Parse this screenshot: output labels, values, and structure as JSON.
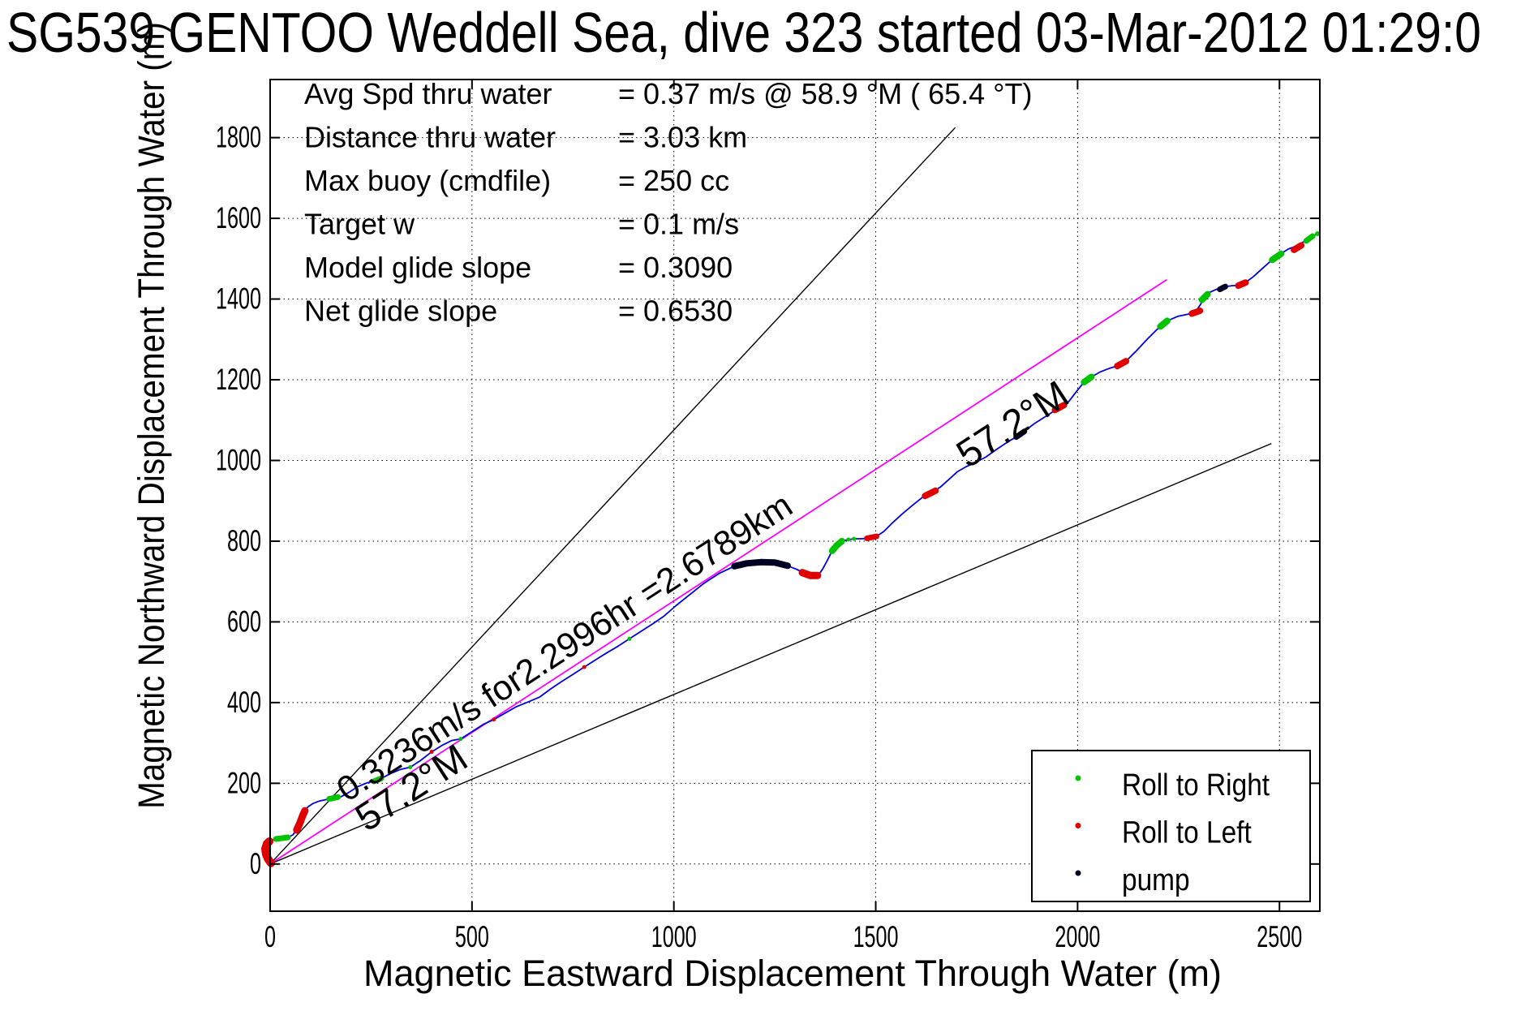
{
  "title": "SG539 GENTOO Weddell Sea, dive 323 started 03-Mar-2012 01:29:0",
  "stats": [
    {
      "label": "Avg Spd thru water",
      "value": "=  0.37 m/s @  58.9 °M ( 65.4 °T)"
    },
    {
      "label": "Distance thru water",
      "value": "=  3.03 km"
    },
    {
      "label": "Max buoy (cmdfile)",
      "value": "= 250 cc"
    },
    {
      "label": "Target w",
      "value": "= 0.1 m/s"
    },
    {
      "label": "Model glide slope",
      "value": "= 0.3090"
    },
    {
      "label": "Net glide slope",
      "value": "= 0.6530"
    }
  ],
  "chart_data": {
    "type": "line",
    "title": "SG539 GENTOO Weddell Sea, dive 323 started 03-Mar-2012 01:29:0",
    "xlabel": "Magnetic Eastward Displacement Through Water (m)",
    "ylabel": "Magnetic Northward Displacement Through Water (m)",
    "xlim": [
      0,
      2600
    ],
    "ylim": [
      -117,
      1944
    ],
    "xticks": [
      0,
      500,
      1000,
      1500,
      2000,
      2500
    ],
    "yticks": [
      0,
      200,
      400,
      600,
      800,
      1000,
      1200,
      1400,
      1600,
      1800
    ],
    "grid": true,
    "colors": {
      "track": "#0000e0",
      "course": "#ff00ff",
      "ref": "#000000",
      "Roll to Right": "#00c400",
      "Roll to Left": "#e00000",
      "pump": "#000022"
    },
    "legend": {
      "position": "bottom-right",
      "entries": [
        {
          "label": "Roll to Right",
          "color": "#00c400"
        },
        {
          "label": "Roll to Left",
          "color": "#e00000"
        },
        {
          "label": "pump",
          "color": "#000022"
        }
      ]
    },
    "ref_lines": [
      {
        "name": "bearing-fan-steep",
        "color": "#000000",
        "from": [
          0,
          0
        ],
        "to": [
          1697,
          1825
        ]
      },
      {
        "name": "course-line-magenta",
        "color": "#ff00ff",
        "from": [
          0,
          0
        ],
        "to": [
          2221,
          1448
        ]
      },
      {
        "name": "bearing-fan-shallow",
        "color": "#000000",
        "from": [
          0,
          0
        ],
        "to": [
          2480,
          1042
        ]
      }
    ],
    "annotations": [
      {
        "text": "0.3236m/s for2.2996hr =2.6789km",
        "x": 190,
        "y": 152,
        "rotation": -33,
        "size": "normal"
      },
      {
        "text": "57.2°M",
        "x": 239,
        "y": 78,
        "rotation": -33,
        "size": "big"
      },
      {
        "text": "57.2°M",
        "x": 1728,
        "y": 979,
        "rotation": -33,
        "size": "big"
      }
    ],
    "track": {
      "name": "dive-track-through-water",
      "points": [
        [
          0,
          0
        ],
        [
          -4,
          8
        ],
        [
          -9,
          18
        ],
        [
          -12,
          30
        ],
        [
          -12,
          42
        ],
        [
          -6,
          52
        ],
        [
          2,
          58
        ],
        [
          14,
          62
        ],
        [
          30,
          64
        ],
        [
          44,
          66
        ],
        [
          56,
          72
        ],
        [
          66,
          84
        ],
        [
          74,
          102
        ],
        [
          80,
          118
        ],
        [
          86,
          132
        ],
        [
          94,
          142
        ],
        [
          106,
          150
        ],
        [
          122,
          156
        ],
        [
          140,
          160
        ],
        [
          158,
          163
        ],
        [
          176,
          167
        ],
        [
          196,
          178
        ],
        [
          218,
          192
        ],
        [
          240,
          201
        ],
        [
          258,
          205
        ],
        [
          275,
          212
        ],
        [
          298,
          224
        ],
        [
          322,
          234
        ],
        [
          347,
          240
        ],
        [
          372,
          256
        ],
        [
          400,
          278
        ],
        [
          426,
          294
        ],
        [
          450,
          306
        ],
        [
          472,
          310
        ],
        [
          500,
          328
        ],
        [
          528,
          346
        ],
        [
          554,
          358
        ],
        [
          582,
          374
        ],
        [
          610,
          390
        ],
        [
          640,
          402
        ],
        [
          668,
          414
        ],
        [
          695,
          434
        ],
        [
          722,
          452
        ],
        [
          750,
          470
        ],
        [
          778,
          488
        ],
        [
          806,
          506
        ],
        [
          835,
          524
        ],
        [
          862,
          540
        ],
        [
          890,
          558
        ],
        [
          918,
          576
        ],
        [
          946,
          594
        ],
        [
          975,
          614
        ],
        [
          1005,
          640
        ],
        [
          1040,
          668
        ],
        [
          1075,
          696
        ],
        [
          1112,
          720
        ],
        [
          1150,
          738
        ],
        [
          1180,
          745
        ],
        [
          1215,
          748
        ],
        [
          1250,
          747
        ],
        [
          1282,
          739
        ],
        [
          1305,
          730
        ],
        [
          1325,
          719
        ],
        [
          1344,
          714
        ],
        [
          1358,
          716
        ],
        [
          1368,
          730
        ],
        [
          1380,
          752
        ],
        [
          1392,
          776
        ],
        [
          1404,
          790
        ],
        [
          1416,
          800
        ],
        [
          1432,
          804
        ],
        [
          1448,
          806
        ],
        [
          1464,
          806
        ],
        [
          1478,
          807
        ],
        [
          1502,
          812
        ],
        [
          1520,
          824
        ],
        [
          1540,
          844
        ],
        [
          1564,
          866
        ],
        [
          1590,
          888
        ],
        [
          1615,
          908
        ],
        [
          1640,
          922
        ],
        [
          1660,
          934
        ],
        [
          1680,
          952
        ],
        [
          1702,
          972
        ],
        [
          1725,
          985
        ],
        [
          1748,
          996
        ],
        [
          1772,
          1008
        ],
        [
          1800,
          1028
        ],
        [
          1830,
          1048
        ],
        [
          1852,
          1060
        ],
        [
          1870,
          1074
        ],
        [
          1894,
          1092
        ],
        [
          1916,
          1106
        ],
        [
          1938,
          1120
        ],
        [
          1958,
          1132
        ],
        [
          1978,
          1146
        ],
        [
          1998,
          1172
        ],
        [
          2016,
          1194
        ],
        [
          2034,
          1207
        ],
        [
          2055,
          1219
        ],
        [
          2078,
          1228
        ],
        [
          2100,
          1235
        ],
        [
          2120,
          1246
        ],
        [
          2146,
          1272
        ],
        [
          2172,
          1300
        ],
        [
          2198,
          1326
        ],
        [
          2222,
          1346
        ],
        [
          2248,
          1357
        ],
        [
          2272,
          1362
        ],
        [
          2292,
          1368
        ],
        [
          2304,
          1386
        ],
        [
          2314,
          1404
        ],
        [
          2326,
          1416
        ],
        [
          2344,
          1424
        ],
        [
          2362,
          1430
        ],
        [
          2382,
          1433
        ],
        [
          2400,
          1434
        ],
        [
          2416,
          1441
        ],
        [
          2436,
          1456
        ],
        [
          2456,
          1474
        ],
        [
          2478,
          1494
        ],
        [
          2500,
          1510
        ],
        [
          2522,
          1524
        ],
        [
          2544,
          1532
        ],
        [
          2560,
          1542
        ],
        [
          2576,
          1552
        ],
        [
          2594,
          1562
        ]
      ]
    },
    "event_segments": [
      {
        "kind": "Roll to Left",
        "w": 10,
        "points": [
          [
            2,
            2
          ],
          [
            -5,
            12
          ],
          [
            -10,
            24
          ],
          [
            -12,
            38
          ],
          [
            -8,
            50
          ],
          [
            -2,
            56
          ]
        ]
      },
      {
        "kind": "Roll to Right",
        "w": 7,
        "points": [
          [
            14,
            62
          ],
          [
            30,
            64
          ],
          [
            44,
            66
          ]
        ]
      },
      {
        "kind": "Roll to Left",
        "w": 9,
        "points": [
          [
            66,
            84
          ],
          [
            74,
            102
          ],
          [
            80,
            118
          ],
          [
            86,
            132
          ]
        ]
      },
      {
        "kind": "Roll to Right",
        "w": 7,
        "points": [
          [
            146,
            161
          ],
          [
            168,
            166
          ]
        ]
      },
      {
        "kind": "Roll to Right",
        "w": 7,
        "points": [
          [
            257,
            205
          ],
          [
            275,
            212
          ]
        ]
      },
      {
        "kind": "Roll to Right",
        "w": 5,
        "points": [
          [
            347,
            240
          ]
        ]
      },
      {
        "kind": "Roll to Left",
        "w": 5,
        "points": [
          [
            400,
            278
          ]
        ]
      },
      {
        "kind": "Roll to Right",
        "w": 5,
        "points": [
          [
            472,
            310
          ]
        ]
      },
      {
        "kind": "Roll to Left",
        "w": 5,
        "points": [
          [
            554,
            358
          ]
        ]
      },
      {
        "kind": "Roll to Left",
        "w": 5,
        "points": [
          [
            778,
            488
          ]
        ]
      },
      {
        "kind": "Roll to Right",
        "w": 5,
        "points": [
          [
            890,
            558
          ]
        ]
      },
      {
        "kind": "pump",
        "w": 8,
        "points": [
          [
            1150,
            738
          ],
          [
            1180,
            745
          ],
          [
            1215,
            748
          ],
          [
            1250,
            747
          ],
          [
            1282,
            739
          ]
        ]
      },
      {
        "kind": "Roll to Left",
        "w": 9,
        "points": [
          [
            1318,
            722
          ],
          [
            1338,
            715
          ],
          [
            1356,
            715
          ]
        ]
      },
      {
        "kind": "Roll to Right",
        "w": 8,
        "points": [
          [
            1392,
            776
          ],
          [
            1404,
            790
          ],
          [
            1416,
            800
          ]
        ]
      },
      {
        "kind": "Roll to Right",
        "w": 5,
        "points": [
          [
            1432,
            804
          ]
        ]
      },
      {
        "kind": "Roll to Right",
        "w": 5,
        "points": [
          [
            1446,
            806
          ]
        ]
      },
      {
        "kind": "Roll to Left",
        "w": 7,
        "points": [
          [
            1478,
            807
          ],
          [
            1502,
            812
          ]
        ]
      },
      {
        "kind": "Roll to Left",
        "w": 8,
        "points": [
          [
            1622,
            912
          ],
          [
            1648,
            925
          ]
        ]
      },
      {
        "kind": "pump",
        "w": 7,
        "points": [
          [
            1848,
            1058
          ],
          [
            1868,
            1072
          ]
        ]
      },
      {
        "kind": "Roll to Left",
        "w": 8,
        "points": [
          [
            1944,
            1125
          ],
          [
            1966,
            1137
          ]
        ]
      },
      {
        "kind": "Roll to Right",
        "w": 8,
        "points": [
          [
            2016,
            1194
          ],
          [
            2034,
            1207
          ]
        ]
      },
      {
        "kind": "Roll to Left",
        "w": 8,
        "points": [
          [
            2098,
            1234
          ],
          [
            2120,
            1246
          ]
        ]
      },
      {
        "kind": "Roll to Right",
        "w": 8,
        "points": [
          [
            2205,
            1332
          ],
          [
            2222,
            1346
          ]
        ]
      },
      {
        "kind": "Roll to Left",
        "w": 8,
        "points": [
          [
            2283,
            1364
          ],
          [
            2303,
            1371
          ]
        ]
      },
      {
        "kind": "Roll to Right",
        "w": 8,
        "points": [
          [
            2308,
            1398
          ],
          [
            2322,
            1412
          ]
        ]
      },
      {
        "kind": "pump",
        "w": 7,
        "points": [
          [
            2352,
            1424
          ],
          [
            2366,
            1431
          ]
        ]
      },
      {
        "kind": "Roll to Left",
        "w": 8,
        "points": [
          [
            2398,
            1433
          ],
          [
            2416,
            1441
          ]
        ]
      },
      {
        "kind": "Roll to Right",
        "w": 8,
        "points": [
          [
            2482,
            1497
          ],
          [
            2504,
            1512
          ]
        ]
      },
      {
        "kind": "Roll to Left",
        "w": 8,
        "points": [
          [
            2536,
            1522
          ],
          [
            2554,
            1533
          ]
        ]
      },
      {
        "kind": "Roll to Right",
        "w": 7,
        "points": [
          [
            2566,
            1544
          ],
          [
            2582,
            1556
          ]
        ]
      },
      {
        "kind": "Roll to Right",
        "w": 6,
        "points": [
          [
            2594,
            1562
          ]
        ]
      }
    ]
  }
}
